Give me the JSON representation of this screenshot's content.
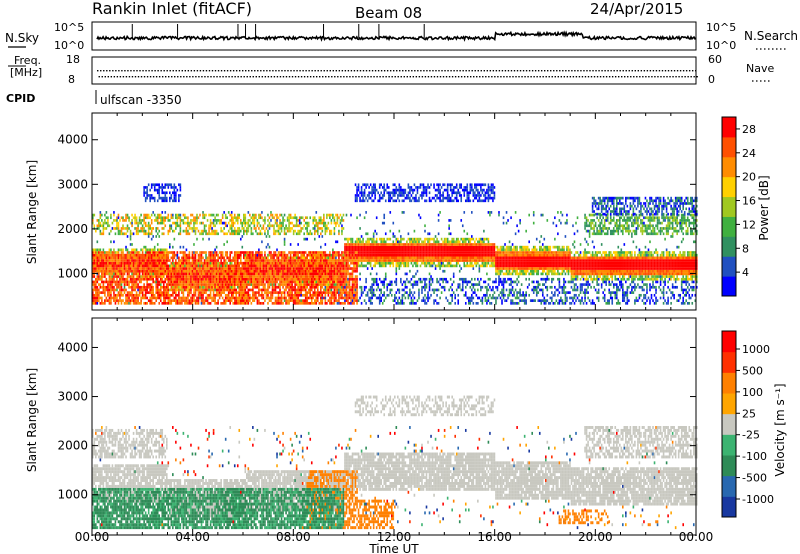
{
  "header": {
    "title": "Rankin Inlet (fitACF)",
    "beam": "Beam 08",
    "date": "24/Apr/2015"
  },
  "status_panel": {
    "nsky_label": "N.Sky",
    "nsearch_label": "N.Search",
    "freq_label_1": "Freq.",
    "freq_label_2": "[MHz]",
    "nave_label": "Nave",
    "cpid_label": "CPID",
    "cpid_value": "ulfscan -3350",
    "noise_ticks_left": [
      "10^5",
      "10^0"
    ],
    "noise_ticks_right": [
      "10^5",
      "10^0"
    ],
    "freq_ticks": [
      "18",
      "8"
    ],
    "nave_ticks": [
      "60",
      "0"
    ]
  },
  "chart_data": [
    {
      "type": "heatmap",
      "name": "power",
      "ylabel": "Slant Range [km]",
      "xlabel": "",
      "ylim": [
        180,
        4600
      ],
      "yticks": [
        1000,
        2000,
        3000,
        4000
      ],
      "xlim": [
        0,
        24
      ],
      "colorbar": {
        "label": "Power [dB]",
        "ticks": [
          4,
          8,
          12,
          16,
          20,
          24,
          28
        ],
        "colors": [
          "#0000ff",
          "#2050c0",
          "#309060",
          "#40b040",
          "#a0c820",
          "#ffd000",
          "#ff8c00",
          "#ff5000",
          "#ff0000"
        ],
        "range": [
          0,
          30
        ]
      }
    },
    {
      "type": "heatmap",
      "name": "velocity",
      "ylabel": "Slant Range [km]",
      "xlabel": "Time UT",
      "ylim": [
        180,
        4600
      ],
      "yticks": [
        1000,
        2000,
        3000,
        4000
      ],
      "xlim": [
        0,
        24
      ],
      "colorbar": {
        "label": "Velocity [m s⁻¹]",
        "ticks": [
          "1000",
          "500",
          "100",
          "25",
          "-25",
          "-100",
          "-500",
          "-1000"
        ],
        "colors": [
          "#1838a0",
          "#2868b0",
          "#2e8b57",
          "#3cb371",
          "#c8c8c0",
          "#ffa500",
          "#ff8000",
          "#ff3000",
          "#ff0000"
        ]
      }
    }
  ],
  "x_axis": {
    "ticks": [
      "00:00",
      "04:00",
      "08:00",
      "12:00",
      "16:00",
      "20:00",
      "00:00"
    ],
    "label": "Time UT"
  },
  "colors": {
    "axis": "#000000",
    "background": "#ffffff",
    "ground_scatter": "#c8c8c0"
  }
}
